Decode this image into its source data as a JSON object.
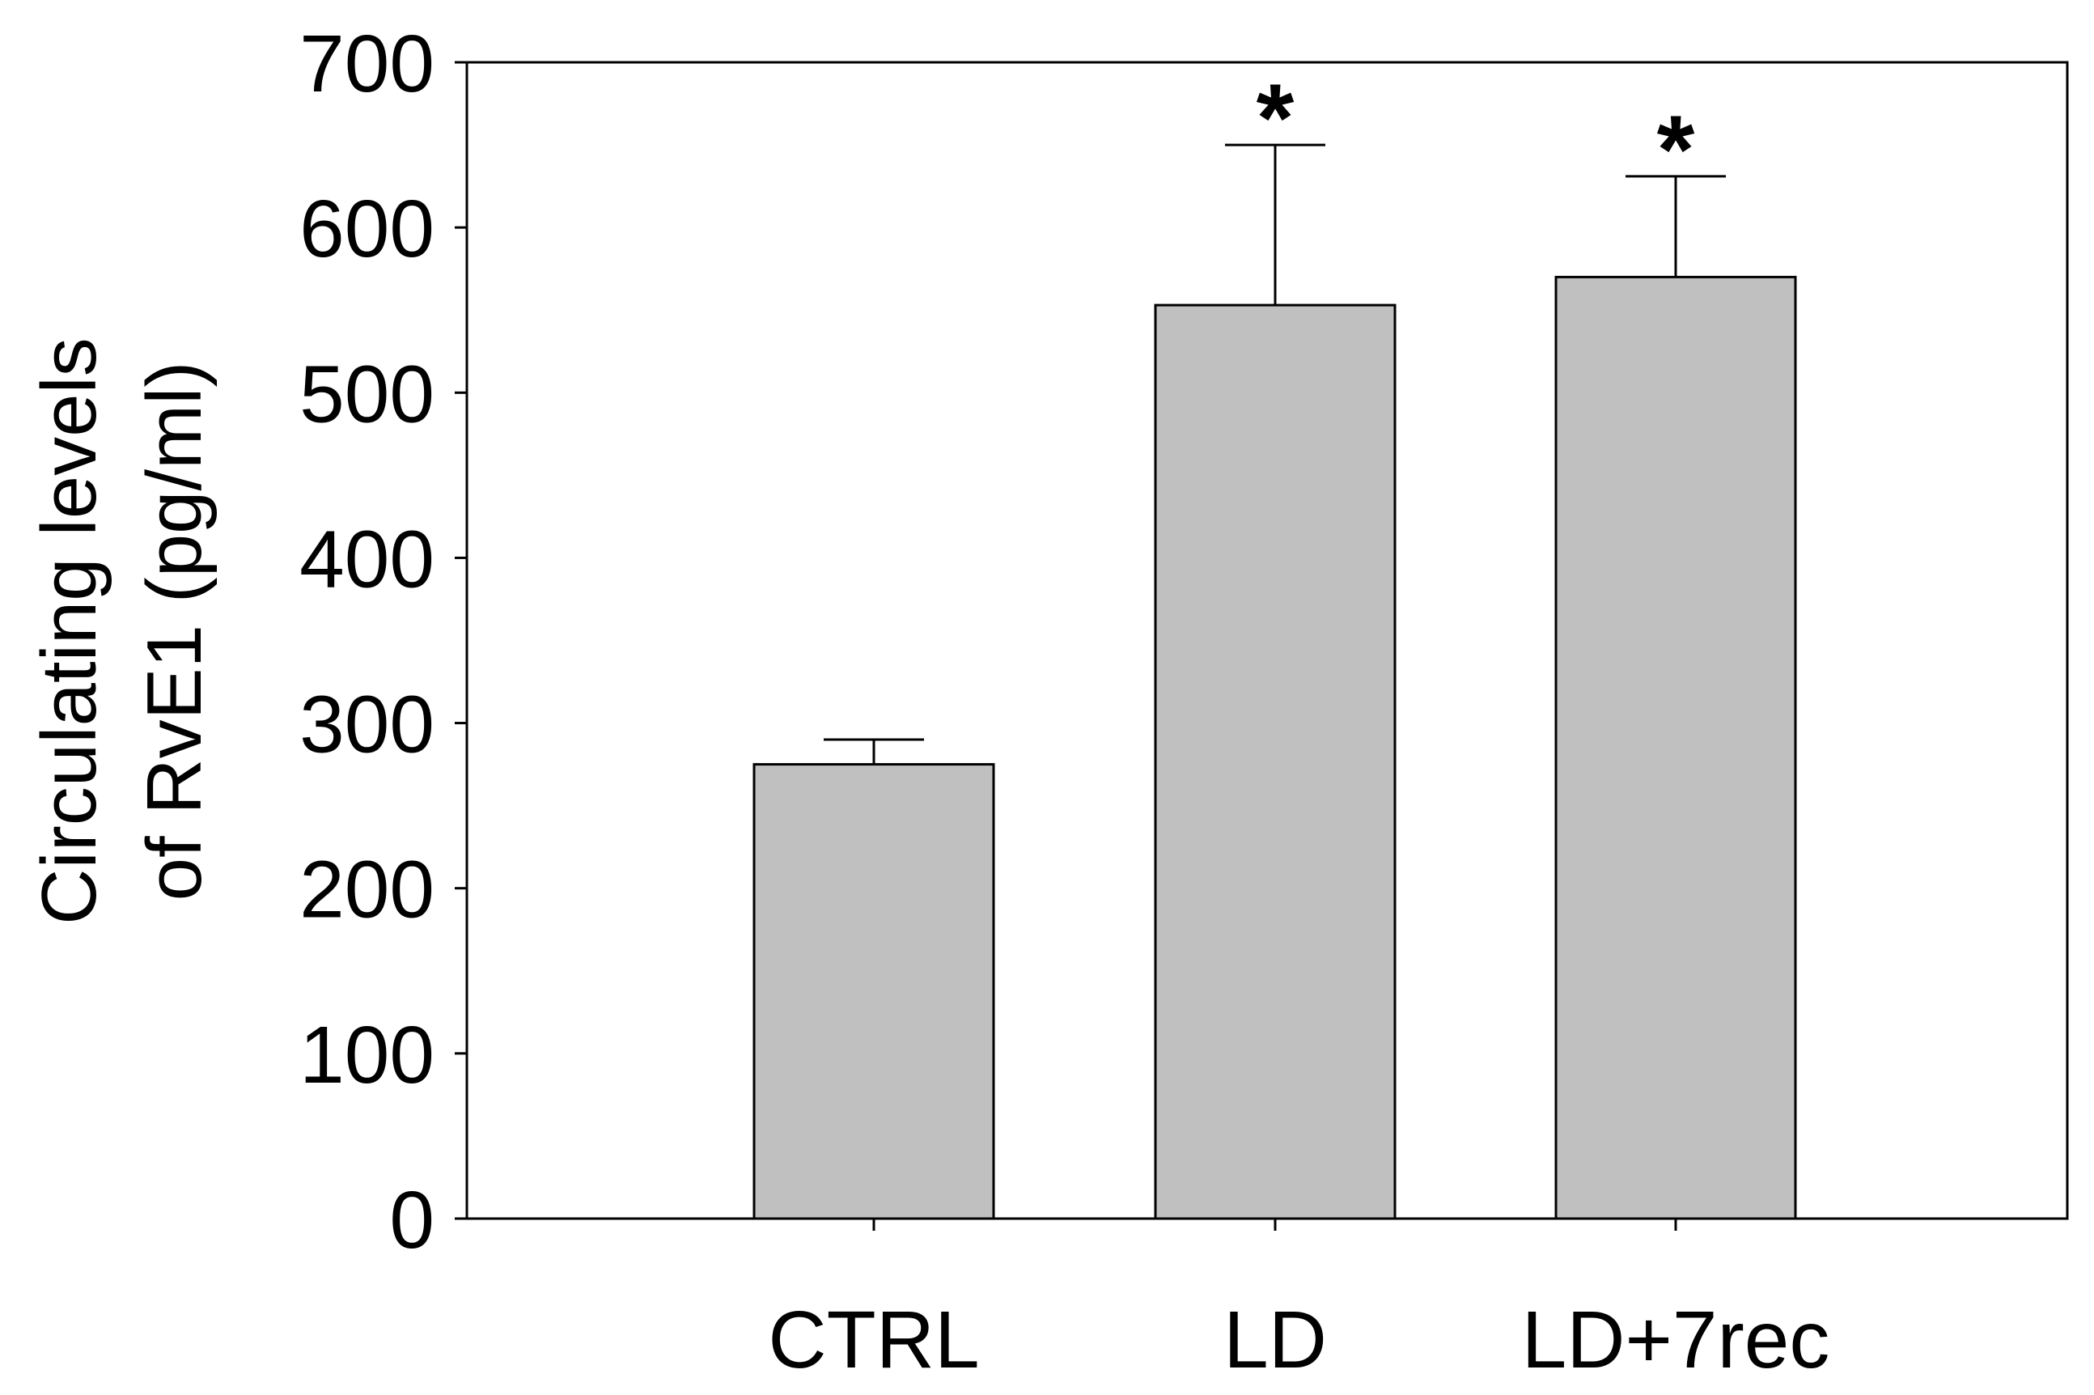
{
  "chart_data": {
    "type": "bar",
    "title": "",
    "xlabel": "",
    "ylabel_lines": [
      "Circulating levels",
      "of RvE1 (pg/ml)"
    ],
    "categories": [
      "CTRL",
      "LD",
      "LD+7rec"
    ],
    "values": [
      275,
      553,
      570
    ],
    "errors": [
      15,
      97,
      61
    ],
    "significance": [
      "",
      "*",
      "*"
    ],
    "ylim": [
      0,
      700
    ],
    "yticks": [
      0,
      100,
      200,
      300,
      400,
      500,
      600,
      700
    ],
    "grid": false,
    "legend": "none",
    "colors": {
      "bar_fill": "#c0c0c0",
      "bar_stroke": "#000000",
      "axis": "#000000",
      "background": "#ffffff"
    }
  }
}
